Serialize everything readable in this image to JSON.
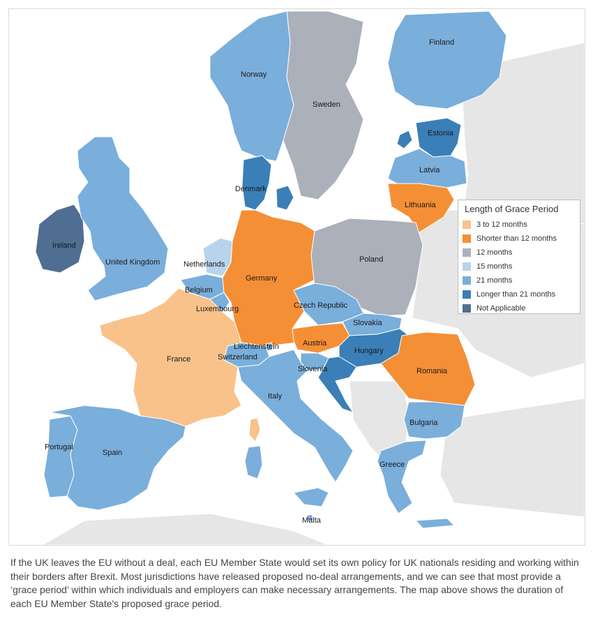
{
  "legend": {
    "title": "Length of Grace Period",
    "items": [
      {
        "label": "3 to 12 months",
        "color": "#f9c28b"
      },
      {
        "label": "Shorter than 12 months",
        "color": "#f58f36"
      },
      {
        "label": "12 months",
        "color": "#abb0bb"
      },
      {
        "label": "15 months",
        "color": "#b8d4ec"
      },
      {
        "label": "21 months",
        "color": "#7aaedb"
      },
      {
        "label": "Longer than 21 months",
        "color": "#3a7fb7"
      },
      {
        "label": "Not Applicable",
        "color": "#4f6e92"
      }
    ]
  },
  "countries": {
    "norway": {
      "name": "Norway",
      "category": "21 months"
    },
    "sweden": {
      "name": "Sweden",
      "category": "12 months"
    },
    "finland": {
      "name": "Finland",
      "category": "21 months"
    },
    "estonia": {
      "name": "Estonia",
      "category": "Longer than 21 months"
    },
    "latvia": {
      "name": "Latvia",
      "category": "21 months"
    },
    "lithuania": {
      "name": "Lithuania",
      "category": "Shorter than 12 months"
    },
    "denmark": {
      "name": "Denmark",
      "category": "Longer than 21 months"
    },
    "ireland": {
      "name": "Ireland",
      "category": "Not Applicable"
    },
    "uk": {
      "name": "United Kingdom",
      "category": "21 months"
    },
    "netherlands": {
      "name": "Netherlands",
      "category": "15 months"
    },
    "belgium": {
      "name": "Belgium",
      "category": "21 months"
    },
    "luxembourg": {
      "name": "Luxembourg",
      "category": "21 months"
    },
    "germany": {
      "name": "Germany",
      "category": "Shorter than 12 months"
    },
    "poland": {
      "name": "Poland",
      "category": "12 months"
    },
    "czech": {
      "name": "Czech Republic",
      "category": "21 months"
    },
    "slovakia": {
      "name": "Slovakia",
      "category": "21 months"
    },
    "austria": {
      "name": "Austria",
      "category": "Shorter than 12 months"
    },
    "hungary": {
      "name": "Hungary",
      "category": "Longer than 21 months"
    },
    "romania": {
      "name": "Romania",
      "category": "Shorter than 12 months"
    },
    "liechtenstein": {
      "name": "Liechtenstein",
      "category": "21 months"
    },
    "switzerland": {
      "name": "Switzerland",
      "category": "21 months"
    },
    "slovenia": {
      "name": "Slovenia",
      "category": "21 months"
    },
    "croatia": {
      "name": "",
      "category": "Longer than 21 months"
    },
    "france": {
      "name": "France",
      "category": "3 to 12 months"
    },
    "italy": {
      "name": "Italy",
      "category": "21 months"
    },
    "portugal": {
      "name": "Portugal",
      "category": "21 months"
    },
    "spain": {
      "name": "Spain",
      "category": "21 months"
    },
    "bulgaria": {
      "name": "Bulgaria",
      "category": "21 months"
    },
    "greece": {
      "name": "Greece",
      "category": "21 months"
    },
    "malta": {
      "name": "Malta",
      "category": "21 months"
    },
    "corsica": {
      "name": "",
      "category": "3 to 12 months"
    }
  },
  "caption": "If the UK leaves the EU without a deal, each EU Member State would set its own policy for UK nationals residing and working within their borders after Brexit. Most jurisdictions have released proposed no-deal arrangements, and we can see that most provide a ‘grace period’ within which individuals and employers can make necessary arrangements. The map above shows the duration of each EU Member State's proposed grace period."
}
